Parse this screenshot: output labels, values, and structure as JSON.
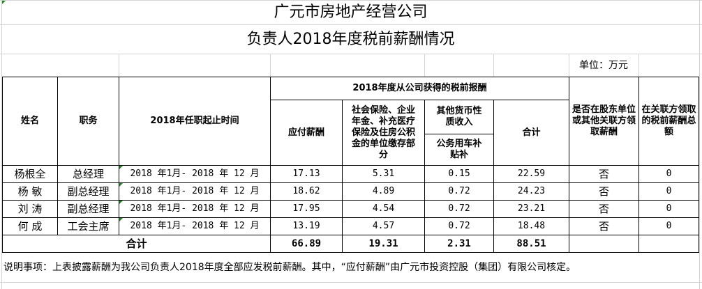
{
  "title": "广元市房地产经营公司",
  "subtitle": "负责人2018年度税前薪酬情况",
  "unit": "单位：万元",
  "headers": {
    "name": "姓名",
    "position": "职务",
    "tenure": "2018年任职起止时间",
    "group": "2018年度从公司获得的税前报酬",
    "payable": "应付薪酬",
    "insurance": "社会保险、企业年金、补充医疗保险及住房公积金的单位缴存部分",
    "other": "其他货币性质收入",
    "car": "公务用车补贴补",
    "total": "合计",
    "shareholder": "是否在股东单位或其他关联方领取薪酬",
    "related": "在关联方领取的税前薪酬总额"
  },
  "rows": [
    {
      "name": "杨根全",
      "position": "总经理",
      "tenure": "2018 年1月- 2018 年 12 月",
      "payable": "17.13",
      "insurance": "5.31",
      "car": "0.15",
      "total": "22.59",
      "shareholder": "否",
      "related": "0"
    },
    {
      "name": "杨 敏",
      "position": "副总经理",
      "tenure": "2018 年1月- 2018 年 12 月",
      "payable": "18.62",
      "insurance": "4.89",
      "car": "0.72",
      "total": "24.23",
      "shareholder": "否",
      "related": "0"
    },
    {
      "name": "刘 涛",
      "position": "副总经理",
      "tenure": "2018 年1月- 2018 年 12 月",
      "payable": "17.95",
      "insurance": "4.54",
      "car": "0.72",
      "total": "23.21",
      "shareholder": "否",
      "related": "0"
    },
    {
      "name": "何 成",
      "position": "工会主席",
      "tenure": "2018 年1月- 2018 年 12 月",
      "payable": "13.19",
      "insurance": "4.57",
      "car": "0.72",
      "total": "18.48",
      "shareholder": "否",
      "related": "0"
    }
  ],
  "sum": {
    "label": "合计",
    "payable": "66.89",
    "insurance": "19.31",
    "car": "2.31",
    "total": "88.51"
  },
  "note": "说明事项：上表披露薪酬为我公司负责人2018年度全部应发税前薪酬。其中，“应付薪酬”由广元市投资控股（集团）有限公司核定。"
}
